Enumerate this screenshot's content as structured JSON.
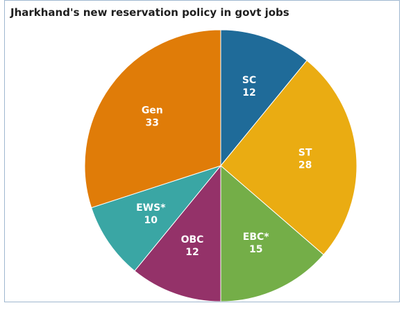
{
  "chart_data": {
    "type": "pie",
    "title": "Jharkhand's new reservation policy in govt jobs",
    "slices": [
      {
        "label": "SC",
        "value": 12,
        "color": "#1f6b99"
      },
      {
        "label": "ST",
        "value": 28,
        "color": "#eaac12"
      },
      {
        "label": "EBC*",
        "value": 15,
        "color": "#74ae48"
      },
      {
        "label": "OBC",
        "value": 12,
        "color": "#943269"
      },
      {
        "label": "EWS*",
        "value": 10,
        "color": "#3aa6a4"
      },
      {
        "label": "Gen",
        "value": 33,
        "color": "#e07c08"
      }
    ],
    "legend": "none",
    "slice_order": "clockwise from top"
  }
}
